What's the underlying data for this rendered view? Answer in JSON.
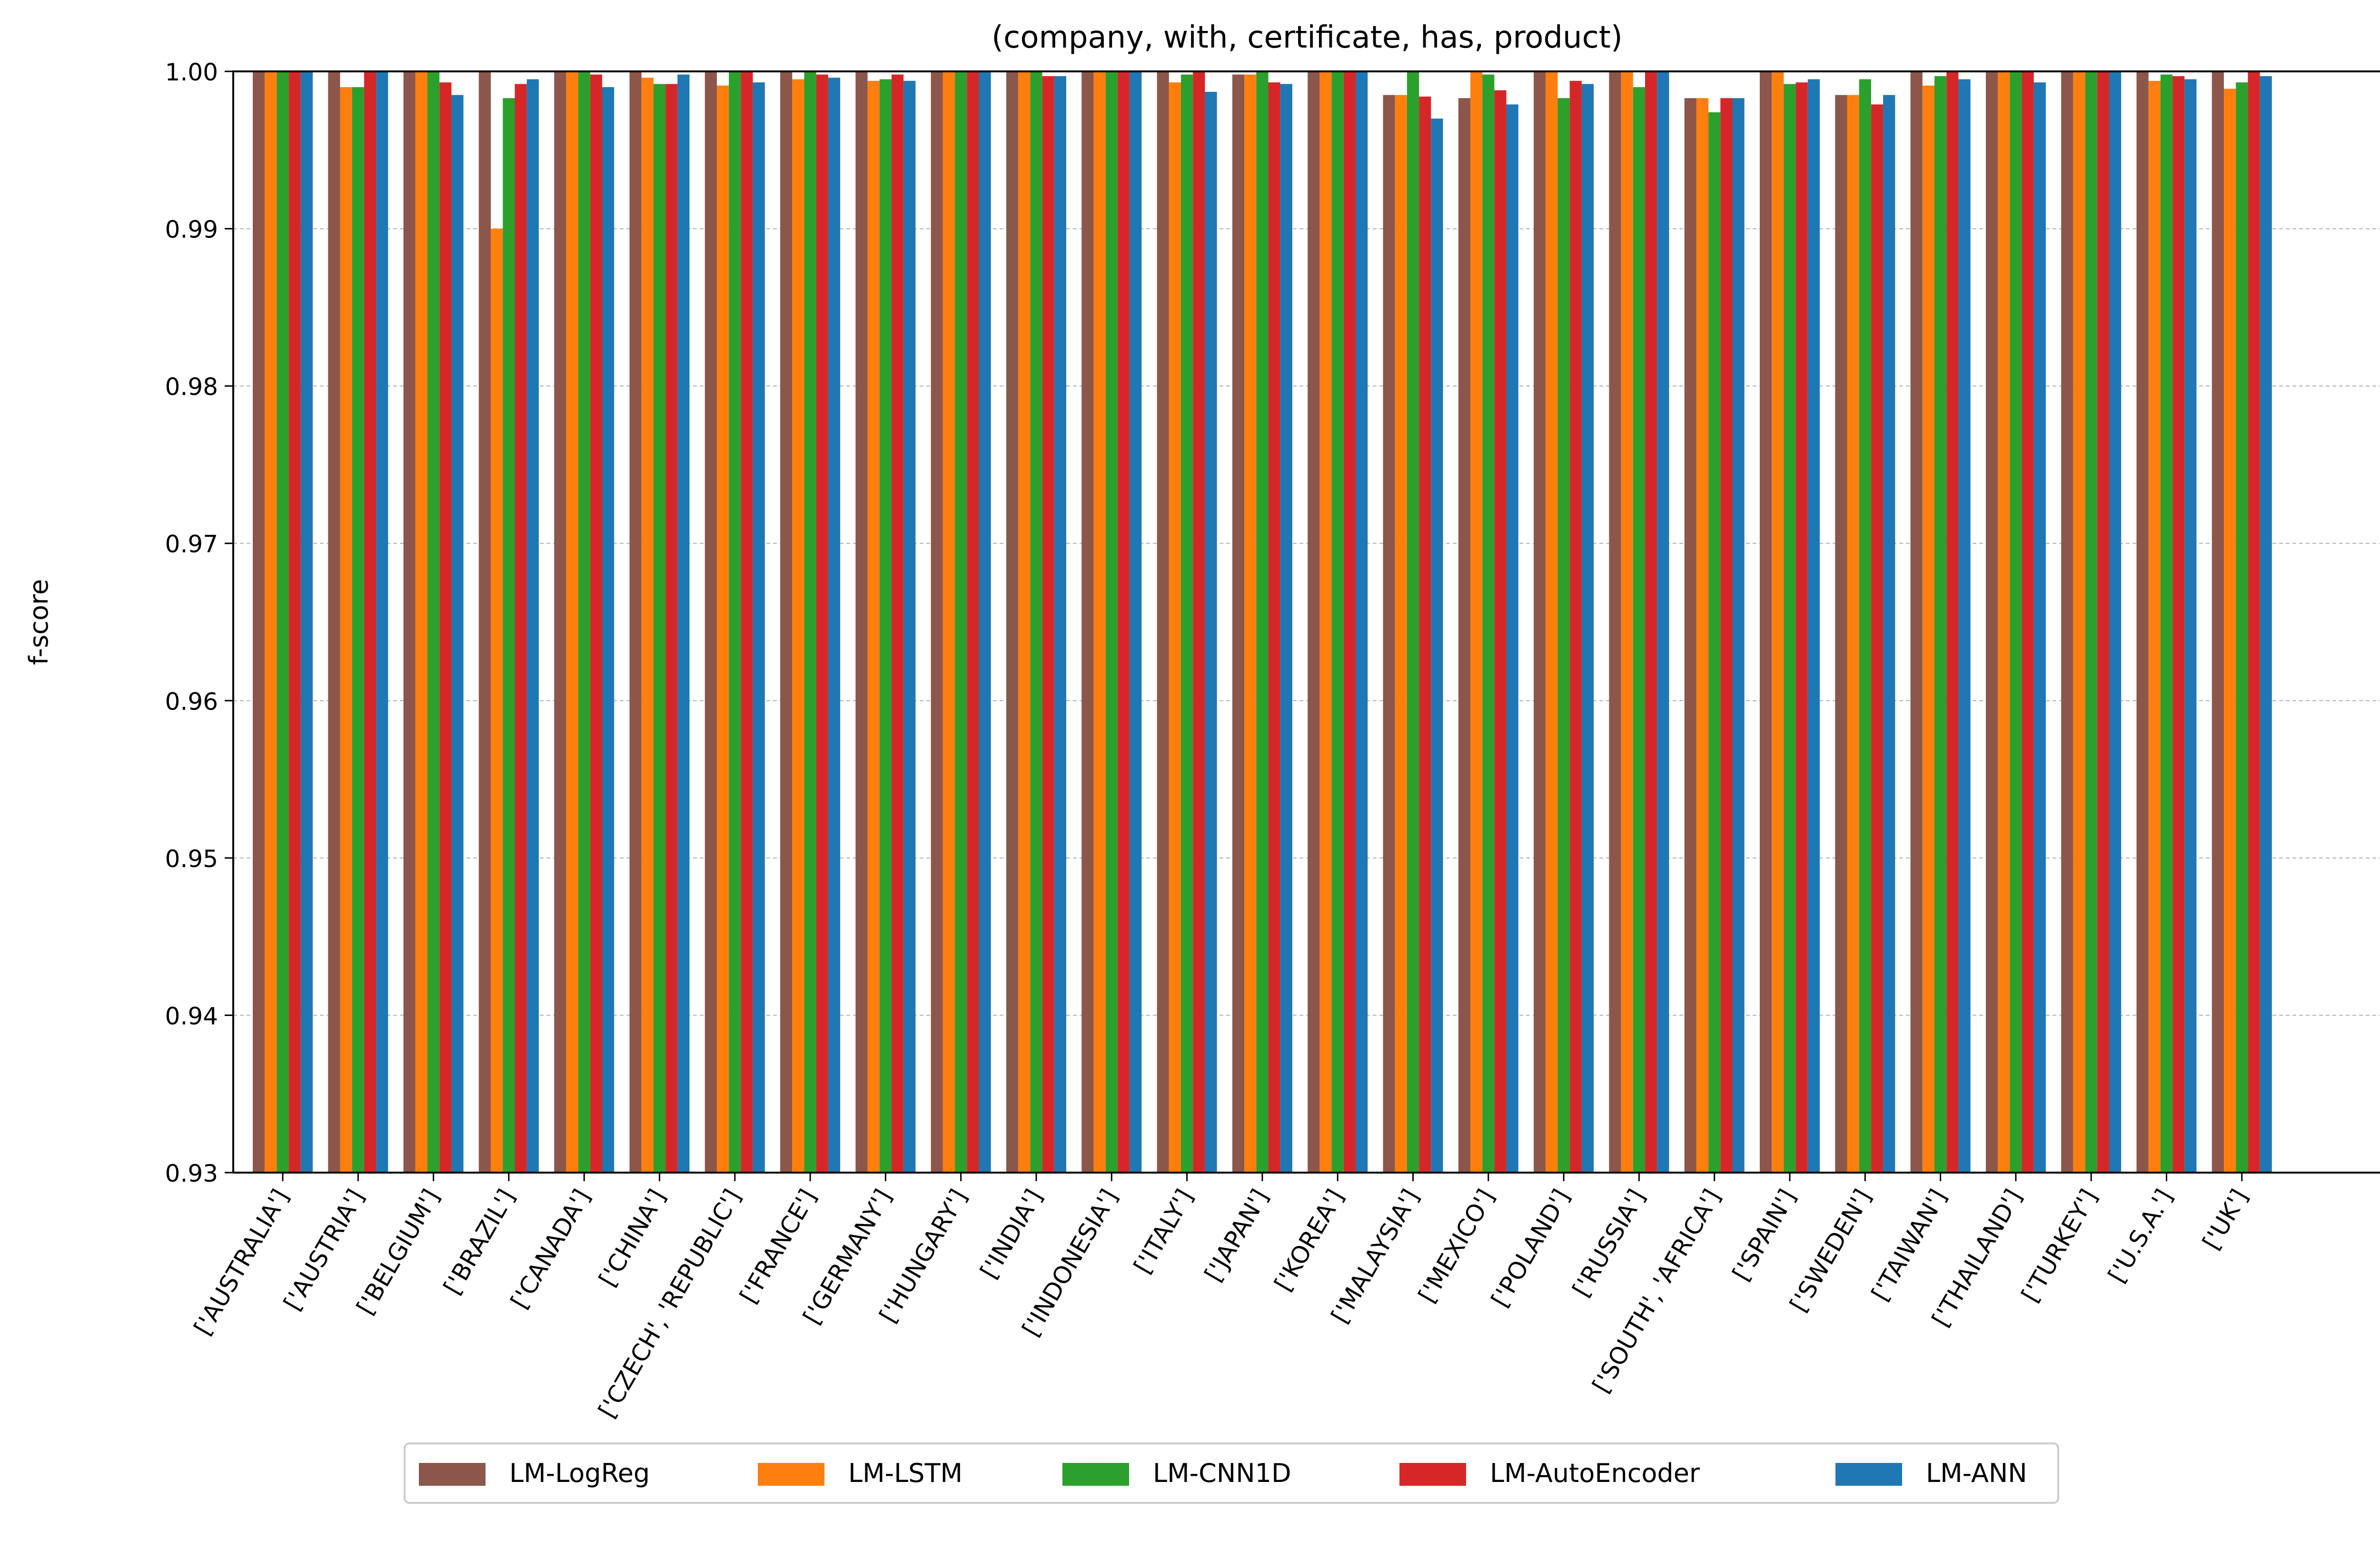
{
  "chart_data": {
    "type": "bar",
    "title": "(company, with, certificate, has, product)",
    "xlabel": "",
    "ylabel": "f-score",
    "ylim": [
      0.93,
      1.0
    ],
    "yticks": [
      "0.93",
      "0.94",
      "0.95",
      "0.96",
      "0.97",
      "0.98",
      "0.99",
      "1.00"
    ],
    "grid": "y-dashed",
    "legend_position": "bottom-center",
    "categories": [
      "['AUSTRALIA']",
      "['AUSTRIA']",
      "['BELGIUM']",
      "['BRAZIL']",
      "['CANADA']",
      "['CHINA']",
      "['CZECH', 'REPUBLIC']",
      "['FRANCE']",
      "['GERMANY']",
      "['HUNGARY']",
      "['INDIA']",
      "['INDONESIA']",
      "['ITALY']",
      "['JAPAN']",
      "['KOREA']",
      "['MALAYSIA']",
      "['MEXICO']",
      "['POLAND']",
      "['RUSSIA']",
      "['SOUTH', 'AFRICA']",
      "['SPAIN']",
      "['SWEDEN']",
      "['TAIWAN']",
      "['THAILAND']",
      "['TURKEY']",
      "['U.S.A.']",
      "['UK']"
    ],
    "series": [
      {
        "name": "LM-LogReg",
        "color": "#8c564b",
        "values": [
          1.0,
          1.0,
          1.0,
          1.0,
          1.0,
          1.0,
          1.0,
          1.0,
          1.0,
          1.0,
          1.0,
          1.0,
          1.0,
          0.9998,
          1.0,
          0.9985,
          0.9983,
          1.0,
          1.0,
          0.9983,
          1.0,
          0.9985,
          1.0,
          1.0,
          1.0,
          1.0,
          1.0
        ]
      },
      {
        "name": "LM-LSTM",
        "color": "#ff7f0e",
        "values": [
          1.0,
          0.999,
          1.0,
          0.99,
          1.0,
          0.9996,
          0.9991,
          0.9995,
          0.9994,
          1.0,
          1.0,
          1.0,
          0.9993,
          0.9998,
          1.0,
          0.9985,
          1.0,
          1.0,
          1.0,
          0.9983,
          1.0,
          0.9985,
          0.9991,
          1.0,
          1.0,
          0.9994,
          0.9989
        ]
      },
      {
        "name": "LM-CNN1D",
        "color": "#2ca02c",
        "values": [
          1.0,
          0.999,
          1.0,
          0.9983,
          1.0,
          0.9992,
          1.0,
          1.0,
          0.9995,
          1.0,
          1.0,
          1.0,
          0.9998,
          1.0,
          1.0,
          1.0,
          0.9998,
          0.9983,
          0.999,
          0.9974,
          0.9992,
          0.9995,
          0.9997,
          1.0,
          1.0,
          0.9998,
          0.9993
        ]
      },
      {
        "name": "LM-AutoEncoder",
        "color": "#d62728",
        "values": [
          1.0,
          1.0,
          0.9993,
          0.9992,
          0.9998,
          0.9992,
          1.0,
          0.9998,
          0.9998,
          1.0,
          0.9997,
          1.0,
          1.0,
          0.9993,
          1.0,
          0.9984,
          0.9988,
          0.9994,
          1.0,
          0.9983,
          0.9993,
          0.9979,
          1.0,
          1.0,
          1.0,
          0.9997,
          1.0
        ]
      },
      {
        "name": "LM-ANN",
        "color": "#1f77b4",
        "values": [
          1.0,
          1.0,
          0.9985,
          0.9995,
          0.999,
          0.9998,
          0.9993,
          0.9996,
          0.9994,
          1.0,
          0.9997,
          1.0,
          0.9987,
          0.9992,
          1.0,
          0.997,
          0.9979,
          0.9992,
          1.0,
          0.9983,
          0.9995,
          0.9985,
          0.9995,
          0.9993,
          1.0,
          0.9995,
          0.9997
        ]
      }
    ]
  }
}
